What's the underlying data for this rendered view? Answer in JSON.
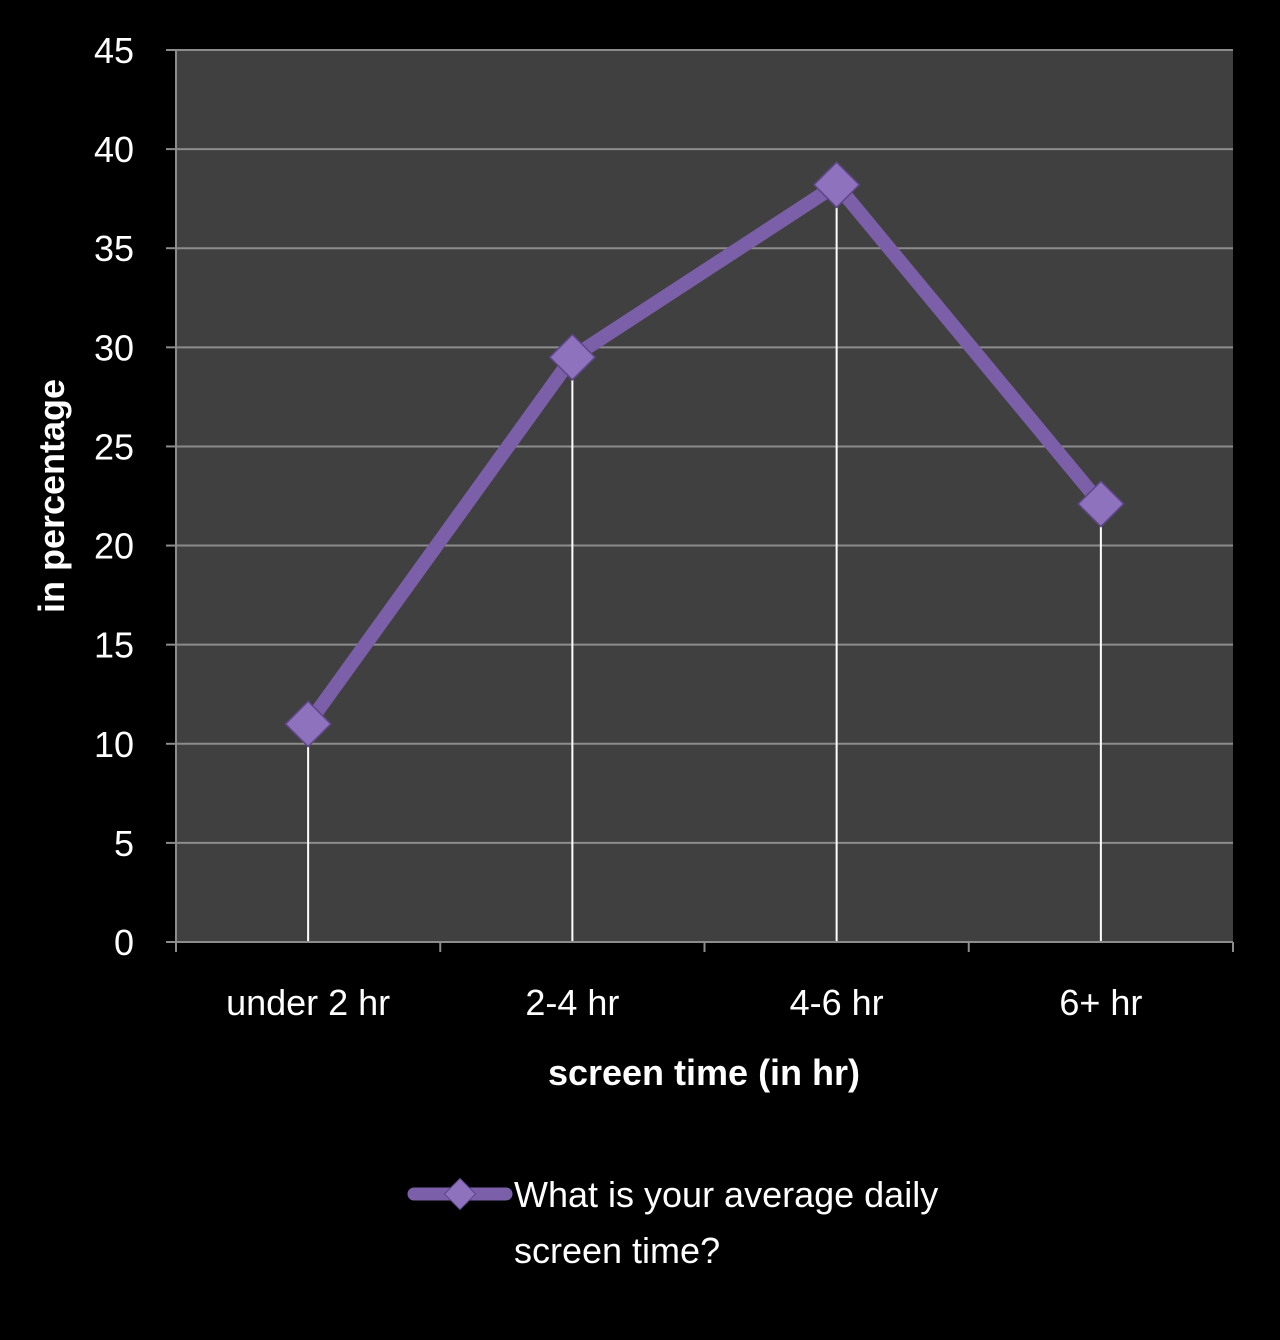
{
  "chart_data": {
    "type": "line",
    "categories": [
      "under 2 hr",
      "2-4 hr",
      "4-6 hr",
      "6+ hr"
    ],
    "series": [
      {
        "name": "What is your average daily screen time?",
        "values": [
          11,
          29.5,
          38.2,
          22.1
        ]
      }
    ],
    "xlabel": "screen time (in hr)",
    "ylabel": "in percentage",
    "ylim": [
      0,
      45
    ],
    "yticks": [
      0,
      5,
      10,
      15,
      20,
      25,
      30,
      35,
      40,
      45
    ],
    "grid": true,
    "drop_lines": true,
    "legend_position": "bottom",
    "legend_lines": [
      "What is your average daily",
      "screen time?"
    ],
    "colors": {
      "background": "#000000",
      "plot_area": "#404040",
      "gridline": "#8c8c8c",
      "series": "#7b5fa8",
      "marker": "#8e72bd",
      "drop_line": "#ffffff"
    }
  }
}
